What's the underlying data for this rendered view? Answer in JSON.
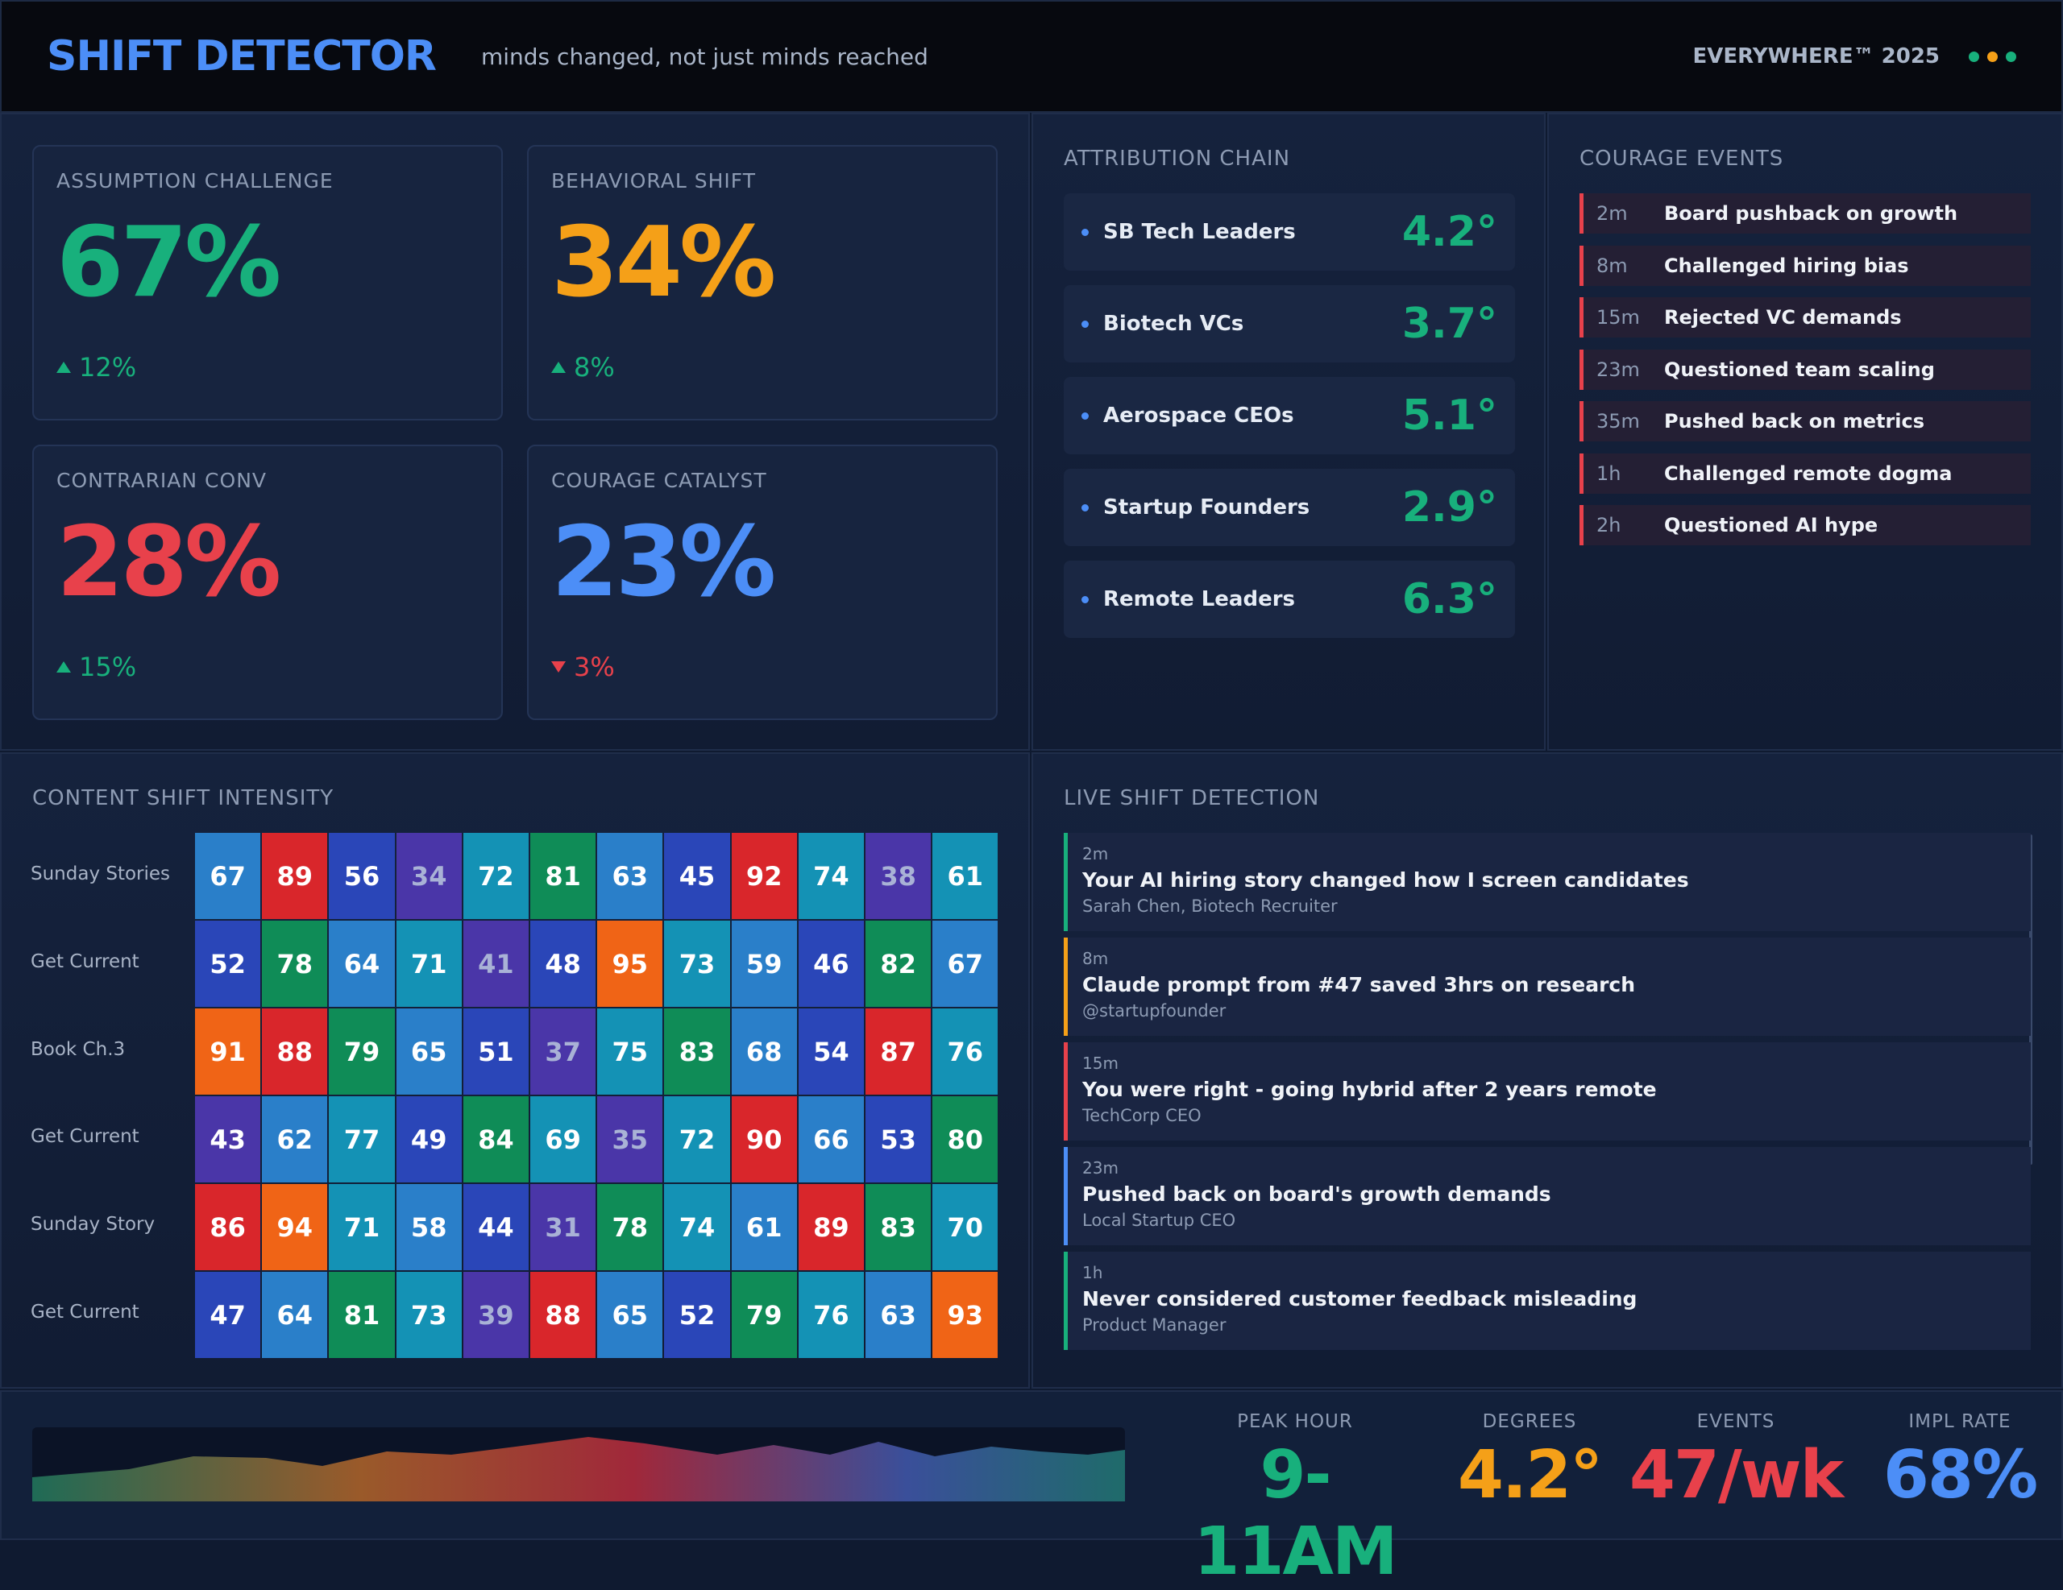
{
  "header": {
    "title": "SHIFT DETECTOR",
    "tagline": "minds changed, not just minds reached",
    "edition": "EVERYWHERE™ 2025",
    "dot_colors": [
      "#18b07c",
      "#f5a018",
      "#18b07c"
    ]
  },
  "kpis": [
    {
      "label": "ASSUMPTION CHALLENGE",
      "value": "67%",
      "change": "12%",
      "direction": "up",
      "color": "#18b07c"
    },
    {
      "label": "BEHAVIORAL SHIFT",
      "value": "34%",
      "change": "8%",
      "direction": "up",
      "color": "#f5a018"
    },
    {
      "label": "CONTRARIAN CONV",
      "value": "28%",
      "change": "15%",
      "direction": "up",
      "color": "#e8414b"
    },
    {
      "label": "COURAGE CATALYST",
      "value": "23%",
      "change": "3%",
      "direction": "down",
      "color": "#4c8ef7"
    }
  ],
  "attribution": {
    "title": "ATTRIBUTION CHAIN",
    "items": [
      {
        "name": "SB Tech Leaders",
        "value": "4.2°"
      },
      {
        "name": "Biotech VCs",
        "value": "3.7°"
      },
      {
        "name": "Aerospace CEOs",
        "value": "5.1°"
      },
      {
        "name": "Startup Founders",
        "value": "2.9°"
      },
      {
        "name": "Remote Leaders",
        "value": "6.3°"
      }
    ]
  },
  "courage": {
    "title": "COURAGE EVENTS",
    "items": [
      {
        "time": "2m",
        "text": "Board pushback on growth"
      },
      {
        "time": "8m",
        "text": "Challenged hiring bias"
      },
      {
        "time": "15m",
        "text": "Rejected VC demands"
      },
      {
        "time": "23m",
        "text": "Questioned team scaling"
      },
      {
        "time": "35m",
        "text": "Pushed back on metrics"
      },
      {
        "time": "1h",
        "text": "Challenged remote dogma"
      },
      {
        "time": "2h",
        "text": "Questioned AI hype"
      }
    ]
  },
  "heatmap": {
    "title": "CONTENT SHIFT INTENSITY",
    "rows": [
      "Sunday Stories",
      "Get Current",
      "Book Ch.3",
      "Get Current",
      "Sunday Story",
      "Get Current"
    ],
    "values": [
      [
        "67",
        "89",
        "56",
        "34",
        "72",
        "81",
        "63",
        "45",
        "92",
        "74",
        "38",
        "61"
      ],
      [
        "52",
        "78",
        "64",
        "71",
        "41",
        "48",
        "95",
        "73",
        "59",
        "46",
        "82",
        "67"
      ],
      [
        "91",
        "88",
        "79",
        "65",
        "51",
        "37",
        "75",
        "83",
        "68",
        "54",
        "87",
        "76"
      ],
      [
        "43",
        "62",
        "77",
        "49",
        "84",
        "69",
        "35",
        "72",
        "90",
        "66",
        "53",
        "80"
      ],
      [
        "86",
        "94",
        "71",
        "58",
        "44",
        "31",
        "78",
        "74",
        "61",
        "89",
        "83",
        "70"
      ],
      [
        "47",
        "64",
        "81",
        "73",
        "39",
        "88",
        "65",
        "52",
        "79",
        "76",
        "63",
        "93"
      ]
    ],
    "colors": [
      [
        "#2a7fc9",
        "#d9262b",
        "#2a46b8",
        "#4a36a8",
        "#1492b5",
        "#0f8c57",
        "#2a7fc9",
        "#2a46b8",
        "#d9262b",
        "#1492b5",
        "#4a36a8",
        "#1492b5"
      ],
      [
        "#2a46b8",
        "#0f8c57",
        "#2a7fc9",
        "#1492b5",
        "#4a36a8",
        "#2a46b8",
        "#f06416",
        "#1492b5",
        "#2a7fc9",
        "#2a46b8",
        "#0f8c57",
        "#2a7fc9"
      ],
      [
        "#f06416",
        "#d9262b",
        "#0f8c57",
        "#2a7fc9",
        "#2a46b8",
        "#4a36a8",
        "#1492b5",
        "#0f8c57",
        "#2a7fc9",
        "#2a46b8",
        "#d9262b",
        "#1492b5"
      ],
      [
        "#4a36a8",
        "#2a7fc9",
        "#1492b5",
        "#2a46b8",
        "#0f8c57",
        "#1492b5",
        "#4a36a8",
        "#1492b5",
        "#d9262b",
        "#2a7fc9",
        "#2a46b8",
        "#0f8c57"
      ],
      [
        "#d9262b",
        "#f06416",
        "#1492b5",
        "#2a7fc9",
        "#2a46b8",
        "#4a36a8",
        "#0f8c57",
        "#1492b5",
        "#2a7fc9",
        "#d9262b",
        "#0f8c57",
        "#1492b5"
      ],
      [
        "#2a46b8",
        "#2a7fc9",
        "#0f8c57",
        "#1492b5",
        "#4a36a8",
        "#d9262b",
        "#2a7fc9",
        "#2a46b8",
        "#0f8c57",
        "#1492b5",
        "#2a7fc9",
        "#f06416"
      ]
    ]
  },
  "live": {
    "title": "LIVE SHIFT DETECTION",
    "items": [
      {
        "time": "2m",
        "message": "Your AI hiring story changed how I screen candidates",
        "author": "Sarah Chen, Biotech Recruiter",
        "color": "#18b07c"
      },
      {
        "time": "8m",
        "message": "Claude prompt from #47 saved 3hrs on research",
        "author": "@startupfounder",
        "color": "#f5a018"
      },
      {
        "time": "15m",
        "message": "You were right - going hybrid after 2 years remote",
        "author": "TechCorp CEO",
        "color": "#e8414b"
      },
      {
        "time": "23m",
        "message": "Pushed back on board's growth demands",
        "author": "Local Startup CEO",
        "color": "#4c8ef7"
      },
      {
        "time": "1h",
        "message": "Never considered customer feedback misleading",
        "author": "Product Manager",
        "color": "#18b07c"
      }
    ]
  },
  "footer": {
    "stats": [
      {
        "label": "PEAK HOUR",
        "value": "9-11AM",
        "color": "#18b07c"
      },
      {
        "label": "DEGREES",
        "value": "4.2°",
        "color": "#f5a018"
      },
      {
        "label": "EVENTS",
        "value": "47/wk",
        "color": "#e8414b"
      },
      {
        "label": "IMPL RATE",
        "value": "68%",
        "color": "#4c8ef7"
      }
    ]
  }
}
